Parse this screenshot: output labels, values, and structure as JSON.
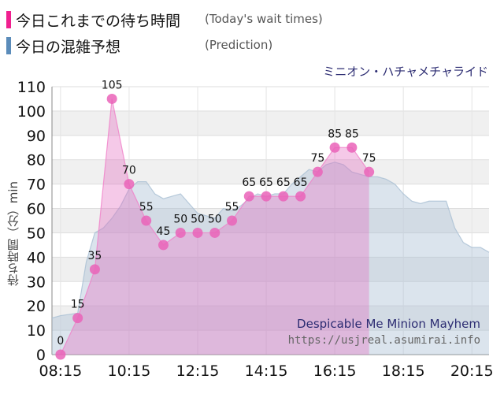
{
  "legend": [
    {
      "main": "今日これまでの待ち時間",
      "sub": "(Today's wait times)",
      "color": "#f0208f"
    },
    {
      "main": "今日の混雑予想",
      "sub": "(Prediction)",
      "color": "#5b8cba"
    }
  ],
  "watermark": {
    "title": "Despicable Me Minion Mayhem",
    "url": "https://usjreal.asumirai.info"
  },
  "chart_data": {
    "type": "area",
    "title": "",
    "subtitle": "ミニオン・ハチャメチャライド",
    "xlabel": "",
    "ylabel": "待ち時間（分）min",
    "ylim": [
      0,
      110
    ],
    "yticks": [
      0,
      10,
      20,
      30,
      40,
      50,
      60,
      70,
      80,
      90,
      100,
      110
    ],
    "xlim": [
      "08:00",
      "20:45"
    ],
    "xticks": [
      "08:15",
      "10:15",
      "12:15",
      "14:15",
      "16:15",
      "18:15",
      "20:15"
    ],
    "grid": true,
    "series": [
      {
        "name": "今日これまでの待ち時間",
        "color": "#f0208f",
        "x": [
          "08:15",
          "08:45",
          "09:15",
          "09:45",
          "10:15",
          "10:45",
          "11:15",
          "11:45",
          "12:15",
          "12:45",
          "13:15",
          "13:45",
          "14:15",
          "14:45",
          "15:15",
          "15:45",
          "16:15",
          "16:45",
          "17:15"
        ],
        "values": [
          0,
          15,
          35,
          105,
          70,
          55,
          45,
          50,
          50,
          50,
          55,
          65,
          65,
          65,
          65,
          75,
          85,
          85,
          75
        ]
      },
      {
        "name": "今日の混雑予想",
        "color": "#5b8cba",
        "x": [
          "08:00",
          "08:15",
          "08:45",
          "09:00",
          "09:15",
          "09:30",
          "09:45",
          "10:00",
          "10:15",
          "10:30",
          "10:45",
          "11:00",
          "11:15",
          "11:30",
          "11:45",
          "12:00",
          "12:15",
          "12:30",
          "12:45",
          "13:00",
          "13:15",
          "13:30",
          "13:45",
          "14:00",
          "14:15",
          "14:30",
          "14:45",
          "15:00",
          "15:15",
          "15:30",
          "15:45",
          "16:00",
          "16:15",
          "16:30",
          "16:45",
          "17:00",
          "17:15",
          "17:30",
          "17:45",
          "18:00",
          "18:15",
          "18:30",
          "18:45",
          "19:00",
          "19:15",
          "19:30",
          "19:45",
          "20:00",
          "20:15",
          "20:30",
          "20:45"
        ],
        "values": [
          15,
          16,
          17,
          38,
          50,
          52,
          56,
          61,
          68,
          71,
          71,
          66,
          64,
          65,
          66,
          62,
          58,
          57,
          56,
          60,
          59,
          61,
          64,
          66,
          65,
          66,
          66,
          70,
          73,
          76,
          75,
          78,
          79,
          78,
          75,
          74,
          73,
          73,
          72,
          70,
          66,
          63,
          62,
          63,
          63,
          63,
          52,
          46,
          44,
          44,
          42
        ]
      }
    ]
  }
}
